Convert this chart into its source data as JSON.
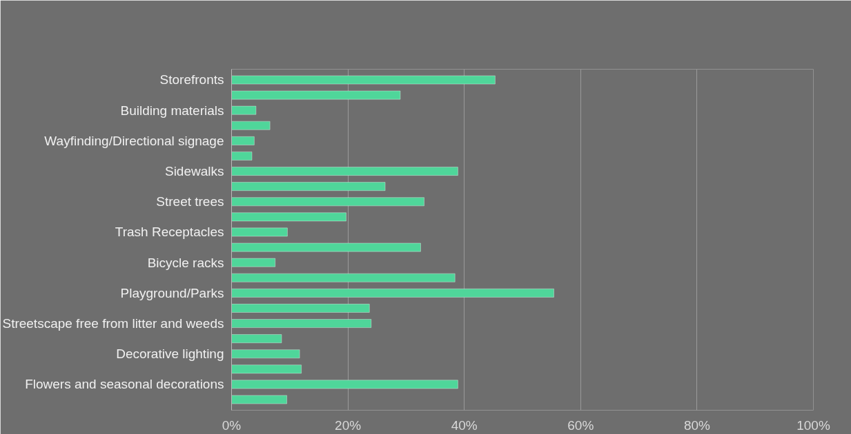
{
  "chart_data": {
    "type": "bar",
    "orientation": "horizontal",
    "categories": [
      "Storefronts",
      null,
      "Building materials",
      null,
      "Wayfinding/Directional signage",
      null,
      "Sidewalks",
      null,
      "Street trees",
      null,
      "Trash Receptacles",
      null,
      "Bicycle racks",
      null,
      "Playground/Parks",
      null,
      "Streetscape free from litter and weeds",
      null,
      "Decorative lighting",
      null,
      "Flowers and seasonal decorations",
      null
    ],
    "values": [
      45.3,
      29.0,
      4.2,
      6.6,
      3.9,
      3.5,
      38.9,
      26.4,
      33.1,
      19.7,
      9.6,
      32.5,
      7.5,
      38.4,
      55.4,
      23.7,
      24.0,
      8.6,
      11.7,
      12.0,
      38.9,
      9.5
    ],
    "color": "#4fd69a",
    "xlim": [
      0,
      100
    ],
    "xticks": [
      {
        "value": 0,
        "label": "0%"
      },
      {
        "value": 20,
        "label": "20%"
      },
      {
        "value": 40,
        "label": "40%"
      },
      {
        "value": 60,
        "label": "60%"
      },
      {
        "value": 80,
        "label": "80%"
      },
      {
        "value": 100,
        "label": "100%"
      }
    ],
    "grid": "x"
  }
}
